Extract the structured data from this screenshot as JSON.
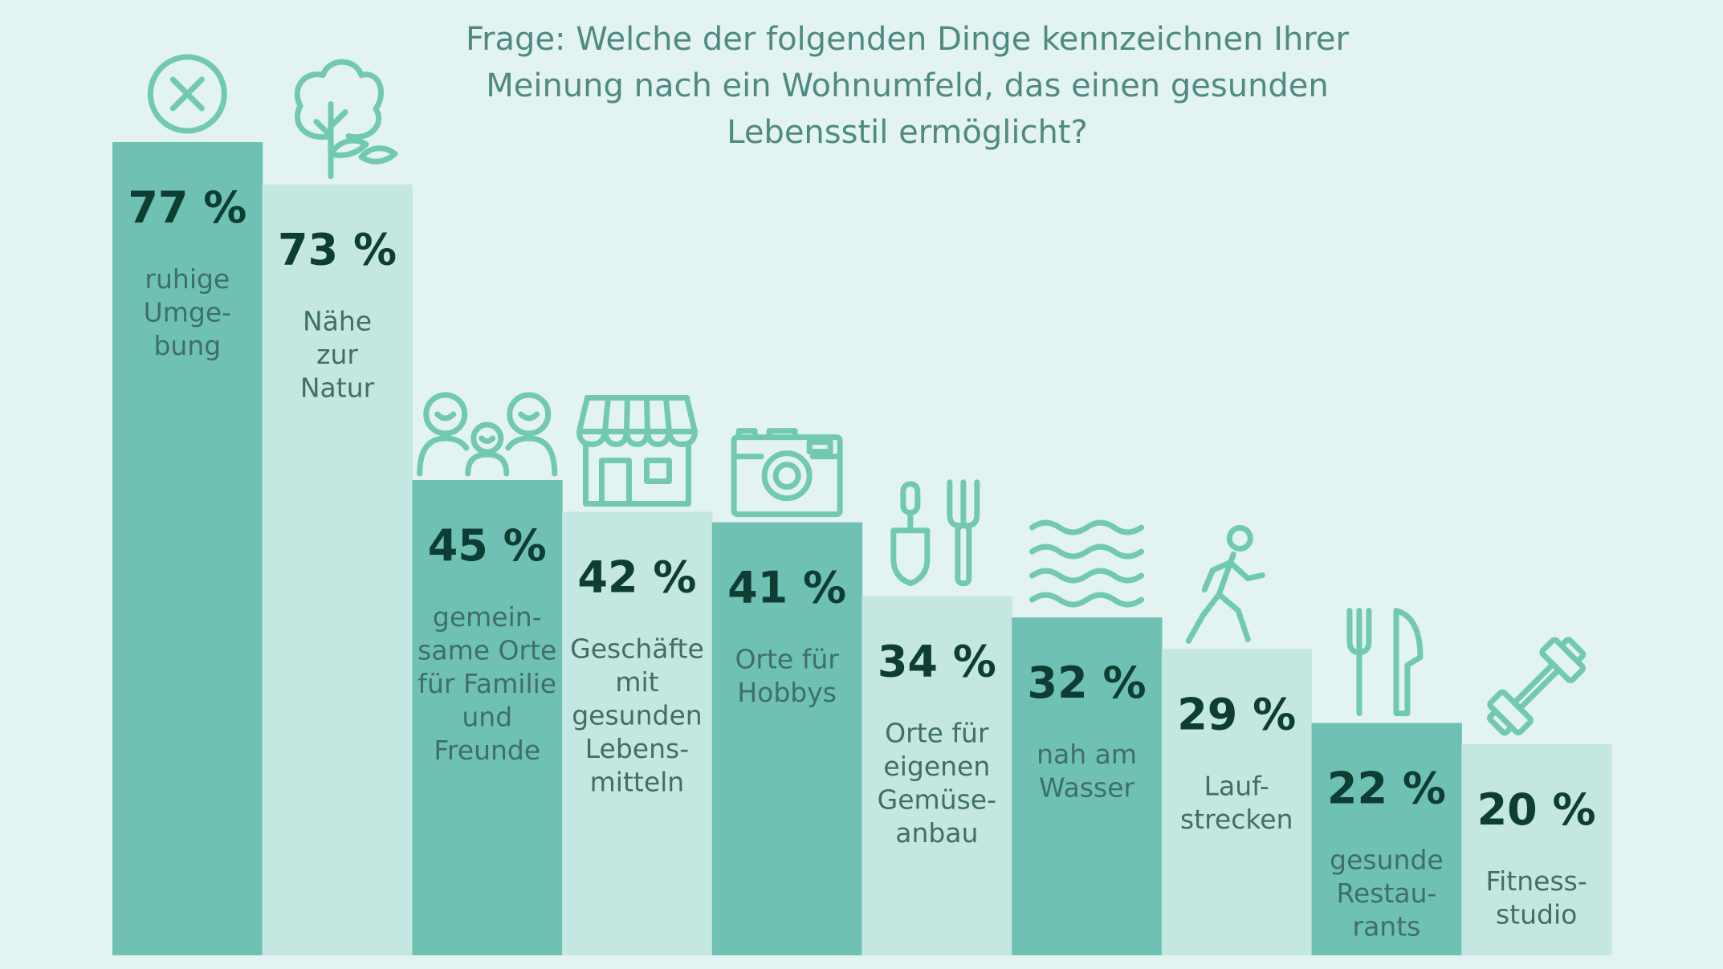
{
  "title": "Frage: Welche der folgenden Dinge kennzeichnen Ihrer Meinung nach ein Wohnumfeld, das einen gesunden Lebensstil ermöglicht?",
  "colors": {
    "background": "#e3f3f1",
    "bar_dark": "#6fc2b3",
    "bar_light": "#c5e7e1",
    "icon": "#72c9b1",
    "value_text": "#0e3d33",
    "label_text": "#3f6f66",
    "title_text": "#4f8a81"
  },
  "chart_data": {
    "type": "bar",
    "title": "Frage: Welche der folgenden Dinge kennzeichnen Ihrer Meinung nach ein Wohnumfeld, das einen gesunden Lebensstil ermöglicht?",
    "ylim": [
      0,
      77
    ],
    "grid": false,
    "unit": "%",
    "bars": [
      {
        "value": 77,
        "value_label": "77 %",
        "label": "ruhige Umge-bung",
        "label_lines": [
          "ruhige",
          "Umge-",
          "bung"
        ],
        "icon": "x-circle-icon",
        "shade": "dark"
      },
      {
        "value": 73,
        "value_label": "73 %",
        "label": "Nähe zur Natur",
        "label_lines": [
          "Nähe",
          "zur",
          "Natur"
        ],
        "icon": "tree-icon",
        "shade": "light"
      },
      {
        "value": 45,
        "value_label": "45 %",
        "label": "gemein-same Orte für Familie und Freunde",
        "label_lines": [
          "gemein-",
          "same Orte",
          "für Familie",
          "und",
          "Freunde"
        ],
        "icon": "family-icon",
        "shade": "dark"
      },
      {
        "value": 42,
        "value_label": "42 %",
        "label": "Geschäfte mit gesunden Lebens-mitteln",
        "label_lines": [
          "Geschäfte",
          "mit",
          "gesunden",
          "Lebens-",
          "mitteln"
        ],
        "icon": "shop-icon",
        "shade": "light"
      },
      {
        "value": 41,
        "value_label": "41 %",
        "label": "Orte für Hobbys",
        "label_lines": [
          "Orte für",
          "Hobbys"
        ],
        "icon": "camera-icon",
        "shade": "dark"
      },
      {
        "value": 34,
        "value_label": "34 %",
        "label": "Orte für eigenen Gemüse-anbau",
        "label_lines": [
          "Orte für",
          "eigenen",
          "Gemüse-",
          "anbau"
        ],
        "icon": "garden-tools-icon",
        "shade": "light"
      },
      {
        "value": 32,
        "value_label": "32 %",
        "label": "nah am Wasser",
        "label_lines": [
          "nah am",
          "Wasser"
        ],
        "icon": "waves-icon",
        "shade": "dark"
      },
      {
        "value": 29,
        "value_label": "29 %",
        "label": "Lauf-strecken",
        "label_lines": [
          "Lauf-",
          "strecken"
        ],
        "icon": "walker-icon",
        "shade": "light"
      },
      {
        "value": 22,
        "value_label": "22 %",
        "label": "gesunde Restau-rants",
        "label_lines": [
          "gesunde",
          "Restau-",
          "rants"
        ],
        "icon": "cutlery-icon",
        "shade": "dark"
      },
      {
        "value": 20,
        "value_label": "20 %",
        "label": "Fitness-studio",
        "label_lines": [
          "Fitness-",
          "studio"
        ],
        "icon": "dumbbell-icon",
        "shade": "light"
      }
    ]
  }
}
